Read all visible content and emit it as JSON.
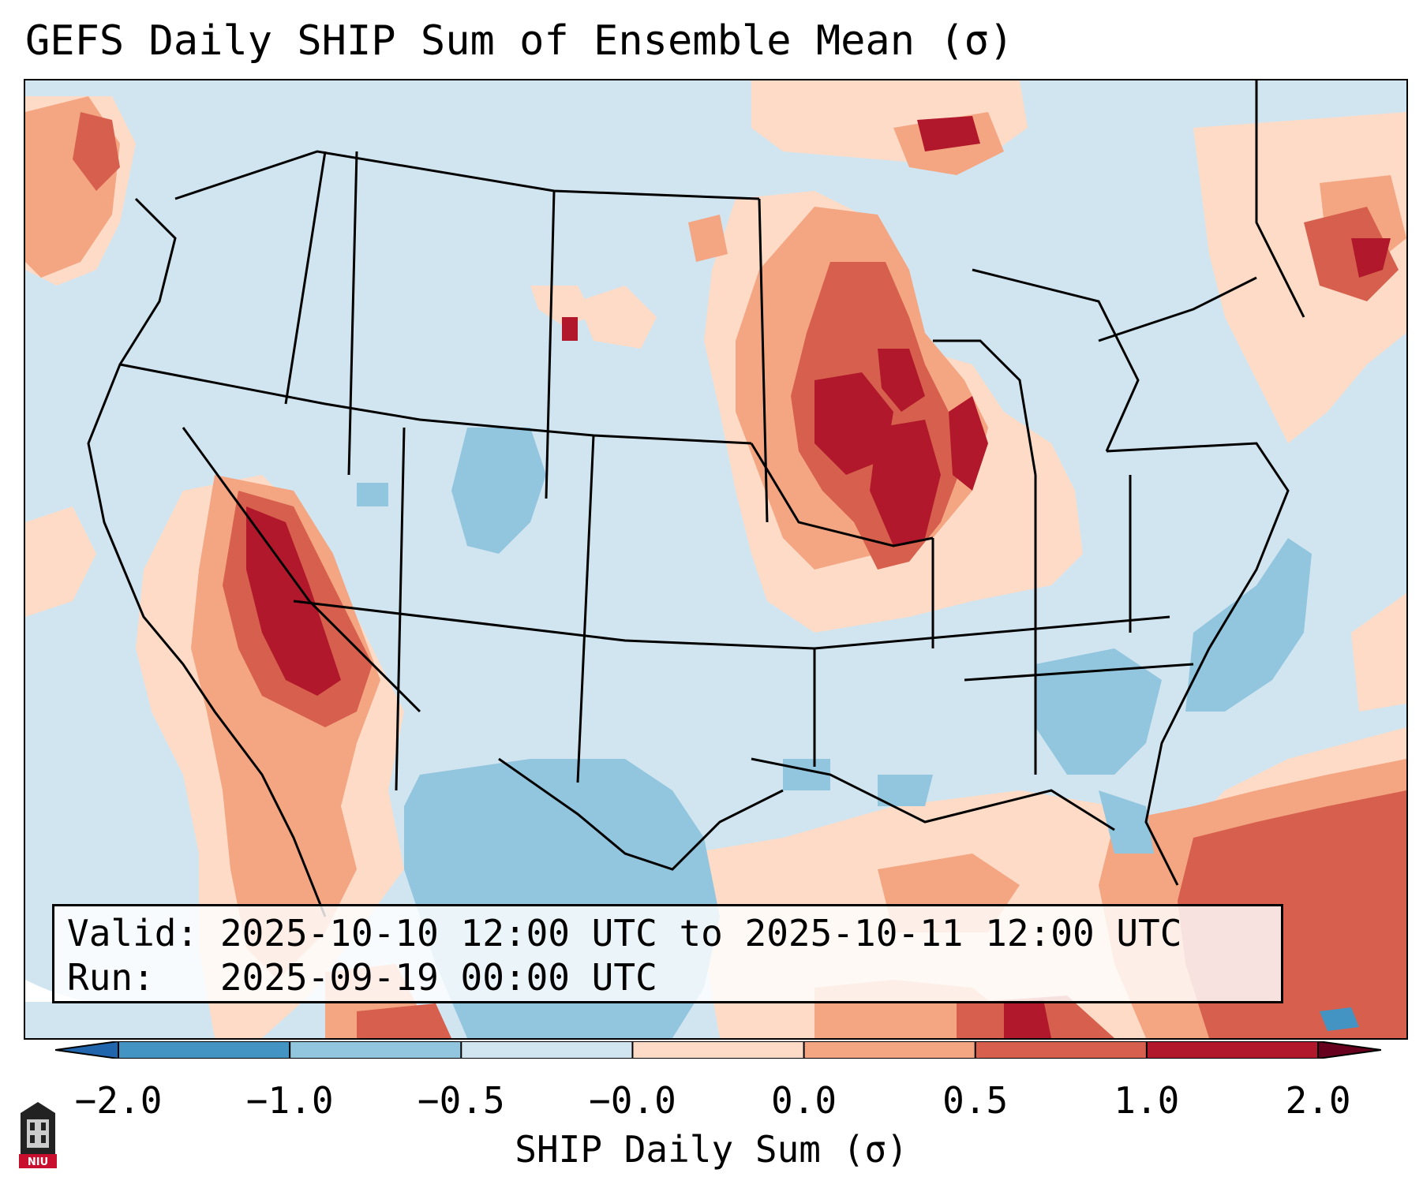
{
  "title": "GEFS Daily SHIP Sum of Ensemble Mean (σ)",
  "info": {
    "valid_label": "Valid:",
    "valid_value": "2025-10-10 12:00 UTC to 2025-10-11 12:00 UTC",
    "run_label": "Run:",
    "run_value": "2025-09-19 00:00 UTC"
  },
  "colorbar": {
    "label": "SHIP Daily Sum (σ)",
    "ticks": [
      "−2.0",
      "−1.0",
      "−0.5",
      "−0.0",
      "0.0",
      "0.5",
      "1.0",
      "2.0"
    ],
    "colors": [
      "#4393c3",
      "#92c5de",
      "#d1e5f0",
      "#fddbc7",
      "#f4a582",
      "#d6604d",
      "#b2182b"
    ],
    "under_color": "#2166ac",
    "over_color": "#67001f"
  },
  "logo": {
    "text": "NIU"
  },
  "icons": {
    "logo": "niu-logo-icon"
  }
}
